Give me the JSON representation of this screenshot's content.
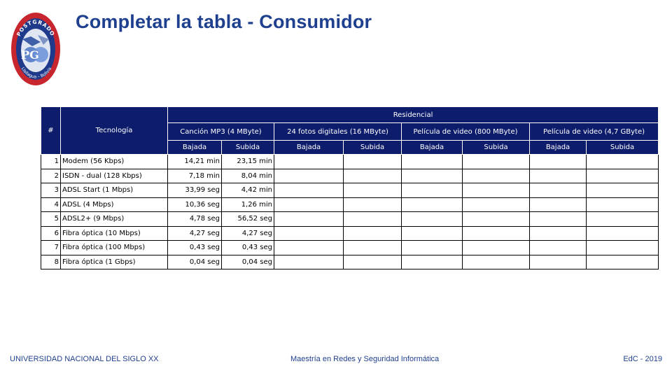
{
  "title": "Completar la tabla - Consumidor",
  "logo": {
    "ring_text": "POSTGRADO",
    "letters": "PG",
    "bottom_text": "Llallagua – Bolivia"
  },
  "table": {
    "col_num": "#",
    "col_tech": "Tecnología",
    "group": "Residencial",
    "subgroups": [
      "Canción MP3 (4 MByte)",
      "24 fotos digitales (16 MByte)",
      "Película de video (800 MByte)",
      "Película de video (4,7 GByte)"
    ],
    "sub_down": "Bajada",
    "sub_up": "Subida",
    "rows": [
      {
        "n": "1",
        "tech": "Modem (56 Kbps)",
        "v": [
          "14,21 min",
          "23,15 min",
          "",
          "",
          "",
          "",
          "",
          ""
        ]
      },
      {
        "n": "2",
        "tech": "ISDN - dual (128 Kbps)",
        "v": [
          "7,18 min",
          "8,04 min",
          "",
          "",
          "",
          "",
          "",
          ""
        ]
      },
      {
        "n": "3",
        "tech": "ADSL Start (1 Mbps)",
        "v": [
          "33,99 seg",
          "4,42 min",
          "",
          "",
          "",
          "",
          "",
          ""
        ]
      },
      {
        "n": "4",
        "tech": "ADSL (4 Mbps)",
        "v": [
          "10,36 seg",
          "1,26 min",
          "",
          "",
          "",
          "",
          "",
          ""
        ]
      },
      {
        "n": "5",
        "tech": "ADSL2+ (9 Mbps)",
        "v": [
          "4,78 seg",
          "56,52 seg",
          "",
          "",
          "",
          "",
          "",
          ""
        ]
      },
      {
        "n": "6",
        "tech": "Fibra óptica (10 Mbps)",
        "v": [
          "4,27 seg",
          "4,27 seg",
          "",
          "",
          "",
          "",
          "",
          ""
        ]
      },
      {
        "n": "7",
        "tech": "Fibra óptica (100 Mbps)",
        "v": [
          "0,43 seg",
          "0,43 seg",
          "",
          "",
          "",
          "",
          "",
          ""
        ]
      },
      {
        "n": "8",
        "tech": "Fibra óptica (1 Gbps)",
        "v": [
          "0,04 seg",
          "0,04 seg",
          "",
          "",
          "",
          "",
          "",
          ""
        ]
      }
    ]
  },
  "footer": {
    "left": "UNIVERSIDAD NACIONAL DEL SIGLO XX",
    "center": "Maestría en Redes y Seguridad Informática",
    "right": "EdC - 2019"
  }
}
